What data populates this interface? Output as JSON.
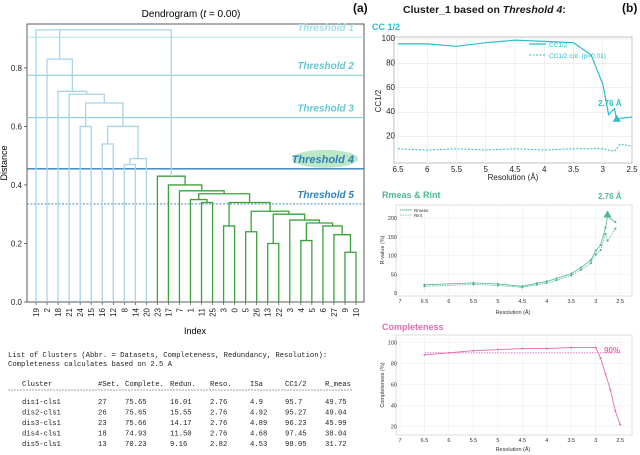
{
  "panel_labels": {
    "a": "(a)",
    "b": "(b)"
  },
  "colors": {
    "light_blue": "#a8d4ea",
    "threshold_light": "#9fe0e8",
    "threshold_mid": "#66c6d4",
    "threshold_dark": "#2f7fb8",
    "green": "#3aa23a",
    "cc_color": "#2bbccf",
    "rmeas_color": "#4fb88f",
    "completeness_color": "#e46bb5",
    "threshold4_highlight": "#bde8c8"
  },
  "right_header": {
    "title_prefix": "Cluster_1 based on ",
    "title_italic": "Threshold 4",
    "title_suffix": ":"
  },
  "cc_panel": {
    "title": "CC 1/2",
    "y_label": "CC1/2",
    "x_label": "Resolution (Å)",
    "annotation": "2.76 Å",
    "legend": [
      "CC1/2",
      "CC1/2 crit. (p=0.01)"
    ]
  },
  "rmeas_panel": {
    "title": "Rmeas & Rint",
    "y_label": "R-value (%)",
    "x_label": "Resolution (Å)",
    "annotation": "2.76 Å",
    "legend": [
      "Rmeas",
      "Rint"
    ]
  },
  "completeness_panel": {
    "title": "Completeness",
    "y_label": "Completeness (%)",
    "x_label": "Resolution (Å)",
    "annotation": "90%"
  },
  "cluster_list": {
    "intro_line1": "List of Clusters (Abbr. = Datasets, Completeness, Redundancy, Resolution):",
    "intro_line2": "Completeness calculates based on 2.5 A",
    "headers": [
      "Cluster",
      "#Set.",
      "Complete.",
      "Redun.",
      "Reso.",
      "ISa",
      "CC1/2",
      "R_meas"
    ],
    "rows": [
      [
        "dis1-cls1",
        "27",
        "75.65",
        "16.01",
        "2.76",
        "4.9",
        "95.7",
        "49.75"
      ],
      [
        "dis2-cls1",
        "26",
        "75.65",
        "15.55",
        "2.76",
        "4.92",
        "95.27",
        "49.04"
      ],
      [
        "dis3-cls1",
        "23",
        "75.66",
        "14.17",
        "2.76",
        "4.89",
        "96.23",
        "45.99"
      ],
      [
        "dis4-cls1",
        "18",
        "74.93",
        "11.50",
        "2.76",
        "4.68",
        "97.45",
        "38.04"
      ],
      [
        "dis5-cls1",
        "13",
        "70.23",
        "9.16",
        "2.82",
        "4.53",
        "98.05",
        "31.72"
      ]
    ]
  },
  "chart_data": [
    {
      "type": "dendrogram",
      "title": "Dendrogram (t = 0.00)",
      "xlabel": "Index",
      "ylabel": "Distance",
      "ylim": [
        0,
        0.95
      ],
      "yticks": [
        0.0,
        0.2,
        0.4,
        0.6,
        0.8
      ],
      "leaf_order": [
        "19",
        "2",
        "18",
        "21",
        "24",
        "15",
        "16",
        "12",
        "8",
        "14",
        "20",
        "23",
        "17",
        "7",
        "1",
        "11",
        "25",
        "3",
        "0",
        "5",
        "26",
        "13",
        "22",
        "3",
        "4",
        "5",
        "6",
        "27",
        "9",
        "10"
      ],
      "thresholds": [
        {
          "name": "Threshold 1",
          "distance": 0.905
        },
        {
          "name": "Threshold 2",
          "distance": 0.775
        },
        {
          "name": "Threshold 3",
          "distance": 0.63
        },
        {
          "name": "Threshold 4",
          "distance": 0.455
        },
        {
          "name": "Threshold 5",
          "distance": 0.335
        }
      ],
      "merge_heights_blue": [
        0.93,
        0.83,
        0.71,
        0.72,
        0.71,
        0.68,
        0.6,
        0.6,
        0.54,
        0.49,
        0.47
      ],
      "merge_heights_green": [
        0.43,
        0.4,
        0.38,
        0.37,
        0.36,
        0.35,
        0.34,
        0.34,
        0.31,
        0.3,
        0.28,
        0.27,
        0.26,
        0.26,
        0.24,
        0.23,
        0.21,
        0.2,
        0.17
      ]
    },
    {
      "type": "line",
      "title": "CC 1/2",
      "xlabel": "Resolution (Å)",
      "ylabel": "CC1/2",
      "xticks": [
        "6.5",
        "6",
        "5.5",
        "5",
        "4.5",
        "4",
        "3.5",
        "3",
        "2.5"
      ],
      "yticks": [
        20,
        40,
        60,
        80,
        100
      ],
      "series": [
        {
          "name": "CC1/2",
          "x": [
            6.5,
            6.0,
            5.5,
            5.0,
            4.5,
            4.0,
            3.5,
            3.2,
            3.0,
            2.9,
            2.8,
            2.76,
            2.7,
            2.5
          ],
          "values": [
            96,
            96,
            94,
            97,
            99,
            98,
            97,
            87,
            63,
            38,
            43,
            33,
            35,
            36
          ]
        },
        {
          "name": "CC1/2 crit. (p=0.01)",
          "x": [
            6.5,
            6.0,
            5.5,
            5.0,
            4.5,
            4.0,
            3.5,
            3.0,
            2.8,
            2.7,
            2.5
          ],
          "values": [
            10,
            9,
            10,
            9,
            10,
            9,
            10,
            10,
            8,
            14,
            12
          ]
        }
      ]
    },
    {
      "type": "line",
      "title": "Rmeas & Rint",
      "xlabel": "Resolution (Å)",
      "ylabel": "R-value (%)",
      "xticks": [
        "7",
        "6.5",
        "6",
        "5.5",
        "5",
        "4.5",
        "4",
        "3.5",
        "3",
        "2.5"
      ],
      "yticks": [
        0,
        50,
        100,
        150,
        200
      ],
      "series": [
        {
          "name": "Rmeas",
          "x": [
            6.5,
            5.5,
            5.0,
            4.5,
            4.2,
            4.0,
            3.8,
            3.5,
            3.3,
            3.1,
            3.0,
            2.9,
            2.8,
            2.76,
            2.6
          ],
          "values": [
            22,
            27,
            24,
            18,
            26,
            31,
            39,
            52,
            68,
            88,
            113,
            128,
            175,
            205,
            190
          ]
        },
        {
          "name": "Rint",
          "x": [
            6.5,
            5.5,
            5.0,
            4.5,
            4.2,
            4.0,
            3.8,
            3.5,
            3.3,
            3.1,
            3.0,
            2.9,
            2.8,
            2.76,
            2.6
          ],
          "values": [
            18,
            23,
            20,
            15,
            22,
            27,
            34,
            47,
            62,
            80,
            103,
            115,
            158,
            140,
            172
          ]
        }
      ]
    },
    {
      "type": "line",
      "title": "Completeness",
      "xlabel": "Resolution (Å)",
      "ylabel": "Completeness (%)",
      "xticks": [
        "7",
        "6.5",
        "6",
        "5.5",
        "5",
        "4.5",
        "4",
        "3.5",
        "3",
        "2.5"
      ],
      "yticks": [
        20,
        40,
        60,
        80,
        100
      ],
      "series": [
        {
          "name": "Completeness",
          "x": [
            6.5,
            6.0,
            5.5,
            5.0,
            4.5,
            4.0,
            3.5,
            3.0,
            2.9,
            2.8,
            2.7,
            2.6,
            2.5
          ],
          "values": [
            88,
            90,
            92,
            93,
            94,
            94,
            95,
            95,
            85,
            70,
            55,
            35,
            22
          ]
        },
        {
          "name": "90%",
          "x": [
            6.5,
            2.5
          ],
          "values": [
            90,
            90
          ]
        }
      ]
    }
  ]
}
